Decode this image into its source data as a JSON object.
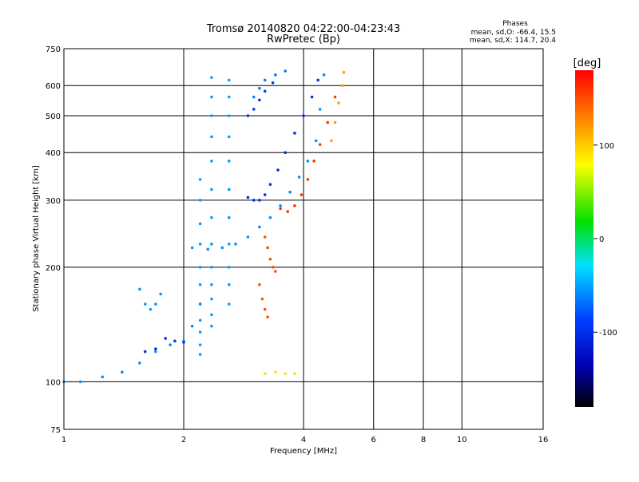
{
  "chart_data": {
    "type": "scatter",
    "title": "Tromsø 20140820 04:22:00-04:23:43",
    "subtitle": "RwPretec (Bp)",
    "xlabel": "Frequency [MHz]",
    "ylabel": "Stationary phase Virtual Height [km]",
    "xscale": "log",
    "yscale": "log",
    "xlim": [
      1,
      16
    ],
    "ylim": [
      75,
      750
    ],
    "xticks": [
      1,
      2,
      4,
      6,
      8,
      10,
      16
    ],
    "xtick_labels": [
      "1",
      "2",
      "4",
      "6",
      "8",
      "10",
      "16"
    ],
    "yticks": [
      75,
      100,
      200,
      300,
      400,
      500,
      600,
      750
    ],
    "ytick_labels": [
      "75",
      "100",
      "200",
      "300",
      "400",
      "500",
      "600",
      "750"
    ],
    "grid": true,
    "phase_stats": {
      "title": "Phases",
      "line_o": "mean, sd,O: -66.4, 15.5",
      "line_x": "mean, sd,X: 114.7, 20.4"
    },
    "colorbar": {
      "label": "[deg]",
      "range": [
        -180,
        180
      ],
      "ticks": [
        100,
        0,
        -100
      ],
      "tick_labels": [
        "100",
        "0",
        "-100"
      ],
      "colors": [
        "#ff0000",
        "#ff8000",
        "#ffff00",
        "#00e000",
        "#00e0ff",
        "#0040ff",
        "#0000b0",
        "#000000"
      ]
    },
    "series": [
      {
        "traces": [
          {
            "phase": -70,
            "points": [
              [
                2.35,
                630
              ],
              [
                2.35,
                560
              ],
              [
                2.35,
                500
              ],
              [
                2.35,
                440
              ],
              [
                2.35,
                380
              ],
              [
                2.35,
                320
              ],
              [
                2.35,
                270
              ],
              [
                2.35,
                230
              ],
              [
                2.35,
                200
              ],
              [
                2.35,
                180
              ],
              [
                2.35,
                165
              ],
              [
                2.35,
                150
              ],
              [
                2.35,
                140
              ]
            ]
          },
          {
            "phase": -70,
            "points": [
              [
                2.6,
                620
              ],
              [
                2.6,
                560
              ],
              [
                2.6,
                500
              ],
              [
                2.6,
                440
              ],
              [
                2.6,
                380
              ],
              [
                2.6,
                320
              ],
              [
                2.6,
                270
              ],
              [
                2.6,
                230
              ],
              [
                2.6,
                200
              ],
              [
                2.6,
                180
              ],
              [
                2.6,
                160
              ]
            ]
          },
          {
            "phase": -70,
            "points": [
              [
                2.2,
                340
              ],
              [
                2.2,
                300
              ],
              [
                2.2,
                260
              ],
              [
                2.2,
                230
              ],
              [
                2.2,
                200
              ],
              [
                2.2,
                180
              ],
              [
                2.2,
                160
              ],
              [
                2.2,
                145
              ],
              [
                2.2,
                135
              ],
              [
                2.2,
                125
              ],
              [
                2.2,
                118
              ]
            ]
          },
          {
            "phase": -75,
            "points": [
              [
                1.0,
                100
              ],
              [
                1.1,
                100
              ],
              [
                1.25,
                103
              ],
              [
                1.4,
                106
              ],
              [
                1.55,
                112
              ],
              [
                1.7,
                120
              ],
              [
                1.85,
                125
              ],
              [
                2.0,
                128
              ],
              [
                2.1,
                140
              ],
              [
                2.2,
                160
              ]
            ]
          },
          {
            "phase": -75,
            "points": [
              [
                2.1,
                225
              ],
              [
                2.3,
                223
              ],
              [
                2.5,
                225
              ],
              [
                2.7,
                230
              ],
              [
                2.9,
                240
              ],
              [
                3.1,
                255
              ],
              [
                3.3,
                270
              ],
              [
                3.5,
                290
              ],
              [
                3.7,
                315
              ],
              [
                3.9,
                345
              ],
              [
                4.1,
                380
              ],
              [
                4.3,
                430
              ],
              [
                4.4,
                520
              ],
              [
                4.5,
                640
              ]
            ]
          },
          {
            "phase": -72,
            "points": [
              [
                1.55,
                175
              ],
              [
                1.6,
                160
              ],
              [
                1.65,
                155
              ],
              [
                1.7,
                160
              ],
              [
                1.75,
                170
              ]
            ]
          },
          {
            "phase": -80,
            "points": [
              [
                3.0,
                560
              ],
              [
                3.1,
                590
              ],
              [
                3.2,
                620
              ],
              [
                3.4,
                640
              ],
              [
                3.6,
                655
              ]
            ]
          },
          {
            "phase": -105,
            "points": [
              [
                2.9,
                500
              ],
              [
                3.0,
                520
              ],
              [
                3.1,
                550
              ],
              [
                3.2,
                580
              ],
              [
                3.35,
                610
              ]
            ]
          },
          {
            "phase": -110,
            "points": [
              [
                2.9,
                305
              ],
              [
                3.0,
                300
              ],
              [
                3.1,
                300
              ],
              [
                3.2,
                310
              ],
              [
                3.3,
                330
              ],
              [
                3.45,
                360
              ],
              [
                3.6,
                400
              ],
              [
                3.8,
                450
              ],
              [
                4.0,
                500
              ],
              [
                4.2,
                560
              ],
              [
                4.35,
                620
              ]
            ]
          },
          {
            "phase": -110,
            "points": [
              [
                1.8,
                130
              ],
              [
                1.9,
                128
              ],
              [
                2.0,
                127
              ],
              [
                1.7,
                122
              ],
              [
                1.6,
                120
              ]
            ]
          },
          {
            "phase": 160,
            "points": [
              [
                3.5,
                285
              ],
              [
                3.65,
                280
              ],
              [
                3.8,
                290
              ],
              [
                3.95,
                310
              ],
              [
                4.1,
                340
              ],
              [
                4.25,
                380
              ],
              [
                4.4,
                420
              ],
              [
                4.6,
                480
              ],
              [
                4.8,
                560
              ]
            ]
          },
          {
            "phase": 150,
            "points": [
              [
                3.2,
                240
              ],
              [
                3.25,
                225
              ],
              [
                3.3,
                210
              ],
              [
                3.35,
                200
              ],
              [
                3.4,
                195
              ]
            ]
          },
          {
            "phase": 150,
            "points": [
              [
                3.1,
                180
              ],
              [
                3.15,
                165
              ],
              [
                3.2,
                155
              ],
              [
                3.25,
                148
              ]
            ]
          },
          {
            "phase": 120,
            "points": [
              [
                4.7,
                430
              ],
              [
                4.8,
                480
              ],
              [
                4.9,
                540
              ],
              [
                5.0,
                600
              ],
              [
                5.05,
                650
              ]
            ]
          },
          {
            "phase": 100,
            "points": [
              [
                3.2,
                105
              ],
              [
                3.4,
                106
              ],
              [
                3.6,
                105
              ],
              [
                3.8,
                105
              ]
            ]
          }
        ]
      }
    ]
  }
}
